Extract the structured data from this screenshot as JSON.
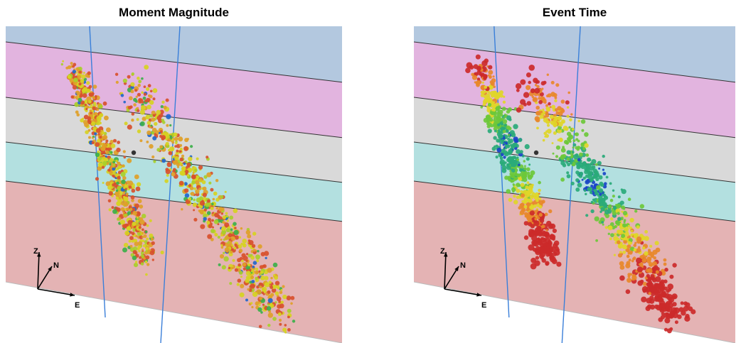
{
  "panels": [
    {
      "title": "Moment Magnitude",
      "coloring": "magnitude",
      "axes": {
        "z": "Z",
        "n": "N",
        "e": "E"
      }
    },
    {
      "title": "Event Time",
      "coloring": "time",
      "axes": {
        "z": "Z",
        "n": "N",
        "e": "E"
      }
    }
  ],
  "layer_colors": {
    "top": "#b3c8df",
    "upper": "#e2b4df",
    "middle": "#d9d9d9",
    "lower": "#b3e0e0",
    "base": "#e4b3b4",
    "well": "#3a7fd9"
  },
  "point_palette": {
    "magnitude": [
      "#d8502c",
      "#e0a028",
      "#d6d222",
      "#a8cf2a",
      "#3cb04a",
      "#2266cc"
    ],
    "time": [
      "#cc2a2a",
      "#e8882a",
      "#e0d628",
      "#6cc83a",
      "#2aaa7a",
      "#1a44c8"
    ]
  }
}
